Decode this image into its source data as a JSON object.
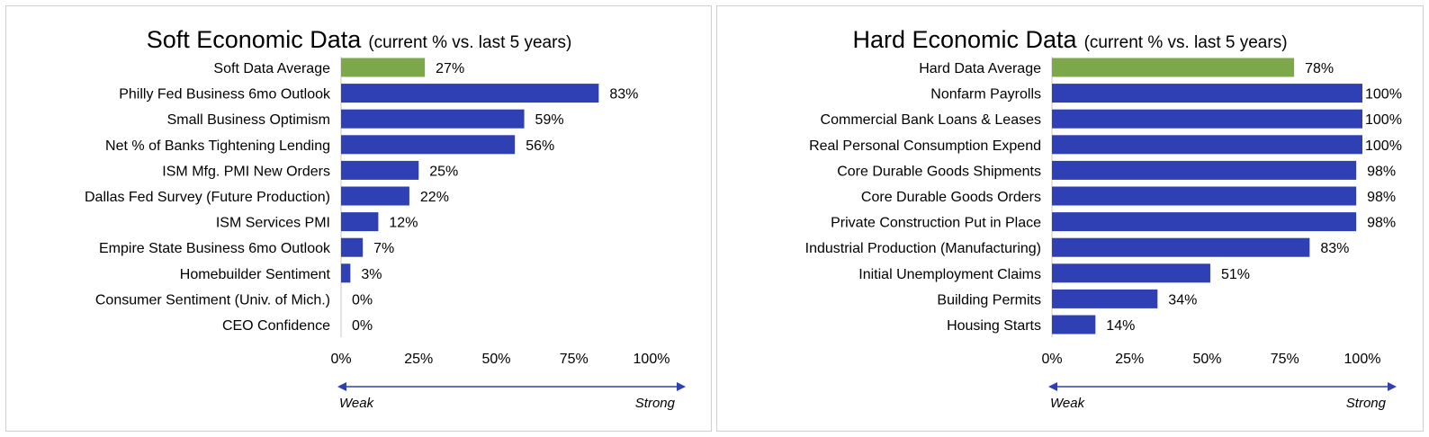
{
  "colors": {
    "bar": "#2e40b3",
    "average_bar": "#7ca84a",
    "arrow": "#2e40b3",
    "axis_line": "#c8c8c8"
  },
  "chart_data": [
    {
      "type": "bar",
      "orientation": "horizontal",
      "title": "Soft Economic Data",
      "subtitle": "(current % vs. last 5 years)",
      "categories": [
        "Soft Data Average",
        "Philly Fed Business 6mo Outlook",
        "Small Business Optimism",
        "Net % of Banks Tightening Lending",
        "ISM Mfg. PMI New Orders",
        "Dallas Fed Survey (Future Production)",
        "ISM Services PMI",
        "Empire State Business 6mo Outlook",
        "Homebuilder Sentiment",
        "Consumer Sentiment (Univ. of Mich.)",
        "CEO Confidence"
      ],
      "values": [
        27,
        83,
        59,
        56,
        25,
        22,
        12,
        7,
        3,
        0,
        0
      ],
      "value_labels": [
        "27%",
        "83%",
        "59%",
        "56%",
        "25%",
        "22%",
        "12%",
        "7%",
        "3%",
        "0%",
        "0%"
      ],
      "xlim": [
        0,
        100
      ],
      "xticks": [
        "0%",
        "25%",
        "50%",
        "75%",
        "100%"
      ],
      "arrow_left_label": "Weak",
      "arrow_right_label": "Strong",
      "grid": false
    },
    {
      "type": "bar",
      "orientation": "horizontal",
      "title": "Hard Economic Data",
      "subtitle": "(current % vs. last 5 years)",
      "categories": [
        "Hard Data Average",
        "Nonfarm Payrolls",
        "Commercial Bank Loans & Leases",
        "Real Personal Consumption Expend",
        "Core Durable Goods Shipments",
        "Core Durable Goods Orders",
        "Private Construction Put in Place",
        "Industrial Production (Manufacturing)",
        "Initial Unemployment Claims",
        "Building Permits",
        "Housing Starts"
      ],
      "values": [
        78,
        100,
        100,
        100,
        98,
        98,
        98,
        83,
        51,
        34,
        14
      ],
      "value_labels": [
        "78%",
        "100%",
        "100%",
        "100%",
        "98%",
        "98%",
        "98%",
        "83%",
        "51%",
        "34%",
        "14%"
      ],
      "xlim": [
        0,
        100
      ],
      "xticks": [
        "0%",
        "25%",
        "50%",
        "75%",
        "100%"
      ],
      "arrow_left_label": "Weak",
      "arrow_right_label": "Strong",
      "grid": false
    }
  ]
}
